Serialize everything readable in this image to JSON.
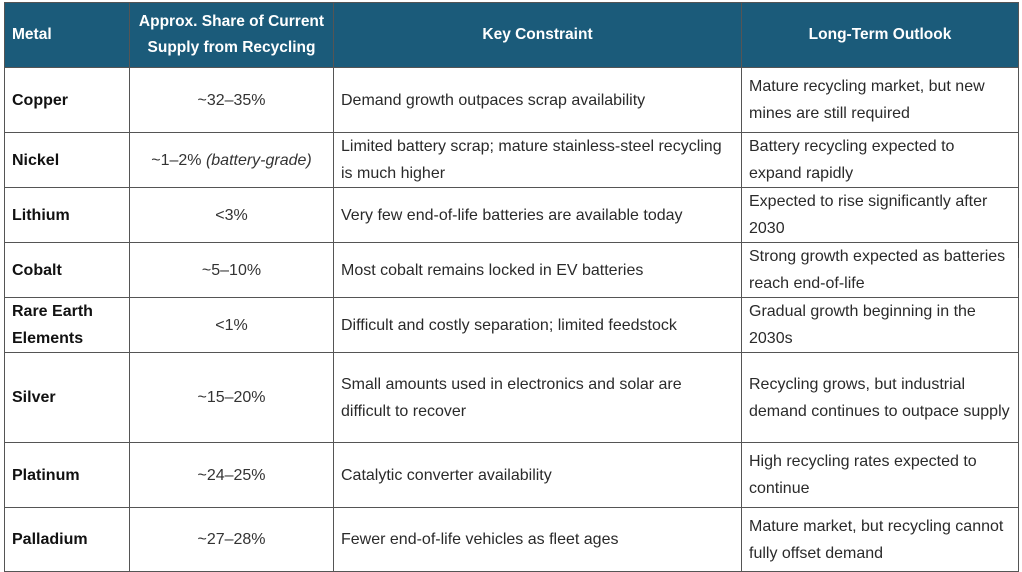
{
  "table": {
    "headers": {
      "metal": "Metal",
      "share": "Approx. Share of Current Supply from Recycling",
      "constraint": "Key Constraint",
      "outlook": "Long-Term Outlook"
    },
    "rows": [
      {
        "metal": "Copper",
        "share": "~32–35%",
        "share_note": "",
        "constraint": "Demand growth outpaces scrap availability",
        "outlook": "Mature recycling market, but new mines are still required"
      },
      {
        "metal": "Nickel",
        "share": "~1–2%",
        "share_note": "(battery-grade)",
        "constraint": "Limited battery scrap; mature stainless-steel recycling is much higher",
        "outlook": "Battery recycling expected to expand rapidly"
      },
      {
        "metal": "Lithium",
        "share": "<3%",
        "share_note": "",
        "constraint": "Very few end-of-life batteries are available today",
        "outlook": "Expected to rise significantly after 2030"
      },
      {
        "metal": "Cobalt",
        "share": "~5–10%",
        "share_note": "",
        "constraint": "Most cobalt remains locked in EV batteries",
        "outlook": "Strong growth expected as batteries reach end-of-life"
      },
      {
        "metal": "Rare Earth Elements",
        "share": "<1%",
        "share_note": "",
        "constraint": "Difficult and costly separation; limited feedstock",
        "outlook": "Gradual growth beginning in the 2030s"
      },
      {
        "metal": "Silver",
        "share": "~15–20%",
        "share_note": "",
        "constraint": "Small amounts used in electronics and solar are difficult to recover",
        "outlook": "Recycling grows, but industrial demand continues to outpace supply"
      },
      {
        "metal": "Platinum",
        "share": "~24–25%",
        "share_note": "",
        "constraint": "Catalytic converter availability",
        "outlook": "High recycling rates expected to continue"
      },
      {
        "metal": "Palladium",
        "share": "~27–28%",
        "share_note": "",
        "constraint": "Fewer end-of-life vehicles as fleet ages",
        "outlook": "Mature market, but recycling cannot fully offset demand"
      }
    ]
  },
  "colors": {
    "header_background": "#1b5b7a",
    "header_text": "#ffffff",
    "border": "#555555"
  }
}
